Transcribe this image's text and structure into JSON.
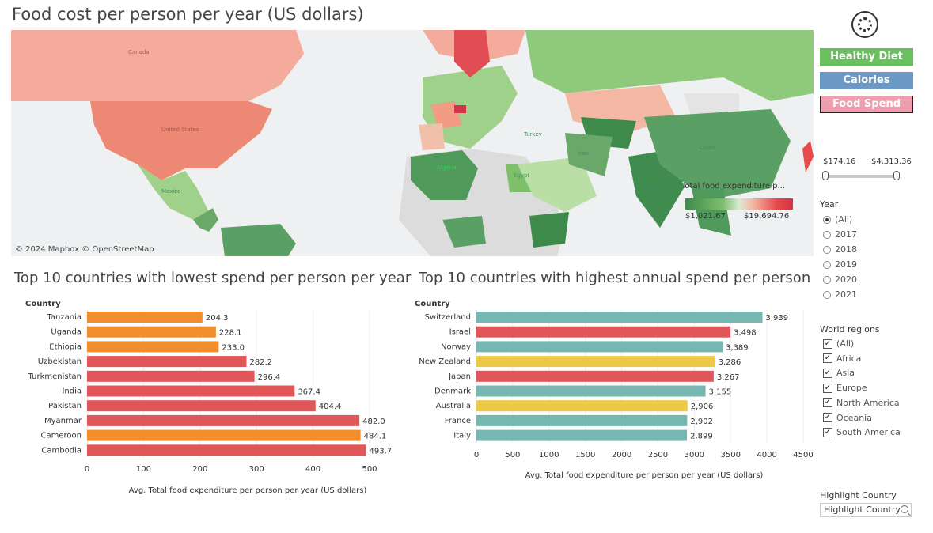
{
  "header": {
    "title": "Food cost per person per year (US dollars)"
  },
  "map": {
    "attribution": "© 2024 Mapbox © OpenStreetMap",
    "labels": {
      "canada": "Canada",
      "united_states": "United States",
      "mexico": "Mexico",
      "algeria": "Algeria",
      "turkey": "Turkey",
      "iran": "Iran",
      "india": "India",
      "china": "China",
      "egypt": "Egypt"
    },
    "legend": {
      "title": "Total food expenditure p...",
      "min": "$1,021.67",
      "max": "$19,694.76"
    }
  },
  "nav": {
    "healthy": "Healthy Diet",
    "calories": "Calories",
    "spend": "Food Spend"
  },
  "range_filter": {
    "min": "$174.16",
    "max": "$4,313.36",
    "selected_min_pct": 0,
    "selected_max_pct": 100
  },
  "year_filter": {
    "title": "Year",
    "options": [
      {
        "label": "(All)",
        "selected": true
      },
      {
        "label": "2017",
        "selected": false
      },
      {
        "label": "2018",
        "selected": false
      },
      {
        "label": "2019",
        "selected": false
      },
      {
        "label": "2020",
        "selected": false
      },
      {
        "label": "2021",
        "selected": false
      }
    ]
  },
  "region_filter": {
    "title": "World regions",
    "options": [
      {
        "label": "(All)",
        "checked": true
      },
      {
        "label": "Africa",
        "checked": true
      },
      {
        "label": "Asia",
        "checked": true
      },
      {
        "label": "Europe",
        "checked": true
      },
      {
        "label": "North America",
        "checked": true
      },
      {
        "label": "Oceania",
        "checked": true
      },
      {
        "label": "South America",
        "checked": true
      }
    ]
  },
  "highlight": {
    "title": "Highlight Country",
    "placeholder": "Highlight Country"
  },
  "colors": {
    "africa": "#f28e2b",
    "asia": "#e15759",
    "europe": "#76b7b2",
    "oceania": "#edc948",
    "map_low": "#4f9a5a",
    "map_high": "#e64a4a"
  },
  "chart_data": [
    {
      "type": "bar",
      "title": "Top 10 countries with lowest spend per person per year",
      "ylabel": "Country",
      "xlabel": "Avg. Total food expenditure per person per year (US dollars)",
      "xlim": [
        0,
        500
      ],
      "xticks": [
        0,
        100,
        200,
        300,
        400,
        500
      ],
      "categories": [
        "Tanzania",
        "Uganda",
        "Ethiopia",
        "Uzbekistan",
        "Turkmenistan",
        "India",
        "Pakistan",
        "Myanmar",
        "Cameroon",
        "Cambodia"
      ],
      "values": [
        204.3,
        228.1,
        233.0,
        282.2,
        296.4,
        367.4,
        404.4,
        482.0,
        484.1,
        493.7
      ],
      "labels": [
        "204.3",
        "228.1",
        "233.0",
        "282.2",
        "296.4",
        "367.4",
        "404.4",
        "482.0",
        "484.1",
        "493.7"
      ],
      "colors": [
        "#f28e2b",
        "#f28e2b",
        "#f28e2b",
        "#e15759",
        "#e15759",
        "#e15759",
        "#e15759",
        "#e15759",
        "#f28e2b",
        "#e15759"
      ],
      "grid": true
    },
    {
      "type": "bar",
      "title": "Top 10 countries with highest annual spend per person",
      "ylabel": "Country",
      "xlabel": "Avg. Total food expenditure per person per year (US dollars)",
      "xlim": [
        0,
        4500
      ],
      "xticks": [
        0,
        500,
        1000,
        1500,
        2000,
        2500,
        3000,
        3500,
        4000,
        4500
      ],
      "categories": [
        "Switzerland",
        "Israel",
        "Norway",
        "New Zealand",
        "Japan",
        "Denmark",
        "Australia",
        "France",
        "Italy"
      ],
      "values": [
        3939,
        3498,
        3389,
        3286,
        3267,
        3155,
        2906,
        2902,
        2899
      ],
      "labels": [
        "3,939",
        "3,498",
        "3,389",
        "3,286",
        "3,267",
        "3,155",
        "2,906",
        "2,902",
        "2,899"
      ],
      "colors": [
        "#76b7b2",
        "#e15759",
        "#76b7b2",
        "#edc948",
        "#e15759",
        "#76b7b2",
        "#edc948",
        "#76b7b2",
        "#76b7b2"
      ],
      "grid": true
    }
  ]
}
